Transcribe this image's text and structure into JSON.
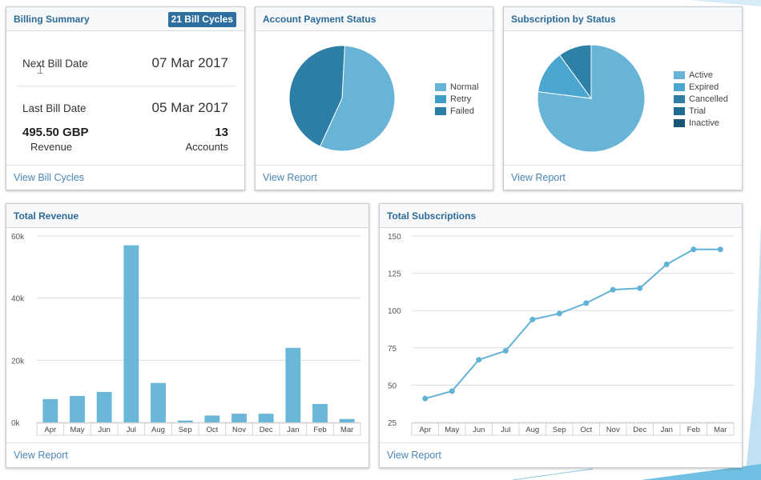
{
  "billing_summary": {
    "title": "Billing Summary",
    "badge": "21 Bill Cycles",
    "next_bill_label": "Next Bill Date",
    "next_bill_value": "07 Mar 2017",
    "last_bill_label": "Last Bill Date",
    "last_bill_value": "05 Mar 2017",
    "revenue_value": "495.50 GBP",
    "revenue_label": "Revenue",
    "accounts_value": "13",
    "accounts_label": "Accounts",
    "footer_link": "View Bill Cycles"
  },
  "account_payment": {
    "title": "Account Payment Status",
    "footer_link": "View Report"
  },
  "subscription_status": {
    "title": "Subscription by Status",
    "footer_link": "View Report"
  },
  "total_revenue": {
    "title": "Total Revenue",
    "footer_link": "View Report"
  },
  "total_subscriptions": {
    "title": "Total Subscriptions",
    "footer_link": "View Report"
  },
  "colors": {
    "bar": "#6ab7d8",
    "line": "#62b2d6",
    "title": "#2b6a99",
    "link": "#4a86b8"
  },
  "chart_data": [
    {
      "type": "pie",
      "title": "Account Payment Status",
      "labels": [
        "Normal",
        "Retry",
        "Failed"
      ],
      "values": [
        56,
        0,
        44
      ],
      "colors": [
        "#67b4d6",
        "#3e9cc6",
        "#2d7ea6"
      ]
    },
    {
      "type": "pie",
      "title": "Subscription by Status",
      "labels": [
        "Active",
        "Expired",
        "Cancelled",
        "Trial",
        "Inactive"
      ],
      "values": [
        77,
        13,
        10,
        0,
        0
      ],
      "colors": [
        "#67b4d6",
        "#4ba6cf",
        "#2f80a7",
        "#1f6c91",
        "#1a5572"
      ],
      "slice_colors": [
        "#67b4d6",
        "#4ba6cf",
        "#2f80a7"
      ]
    },
    {
      "type": "bar",
      "title": "Total Revenue",
      "categories": [
        "Apr",
        "May",
        "Jun",
        "Jul",
        "Aug",
        "Sep",
        "Oct",
        "Nov",
        "Dec",
        "Jan",
        "Feb",
        "Mar"
      ],
      "values": [
        7500,
        8500,
        9800,
        57000,
        12700,
        600,
        2200,
        2800,
        2800,
        24000,
        5900,
        1100
      ],
      "ylim": [
        0,
        60000
      ],
      "yticks": [
        0,
        20000,
        40000,
        60000
      ],
      "ytick_labels": [
        "0k",
        "20k",
        "40k",
        "60k"
      ]
    },
    {
      "type": "line",
      "title": "Total Subscriptions",
      "categories": [
        "Apr",
        "May",
        "Jun",
        "Jul",
        "Aug",
        "Sep",
        "Oct",
        "Nov",
        "Dec",
        "Jan",
        "Feb",
        "Mar"
      ],
      "values": [
        41,
        46,
        67,
        73,
        94,
        98,
        105,
        114,
        115,
        131,
        141,
        141
      ],
      "ylim": [
        25,
        150
      ],
      "yticks": [
        25,
        50,
        75,
        100,
        125,
        150
      ],
      "ytick_labels": [
        "25",
        "50",
        "75",
        "100",
        "125",
        "150"
      ]
    }
  ]
}
